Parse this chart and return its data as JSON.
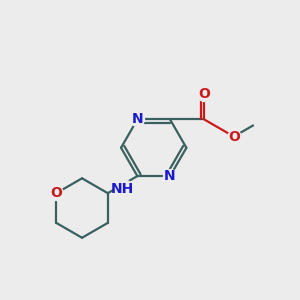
{
  "bg_color": "#ececec",
  "bond_color": "#3a6060",
  "N_color": "#1a1acc",
  "O_color": "#cc1a1a",
  "line_width": 1.6,
  "font_size": 10,
  "figsize": [
    3.0,
    3.0
  ],
  "dpi": 100,
  "xlim": [
    -1.6,
    2.4
  ],
  "ylim": [
    -1.3,
    1.4
  ]
}
